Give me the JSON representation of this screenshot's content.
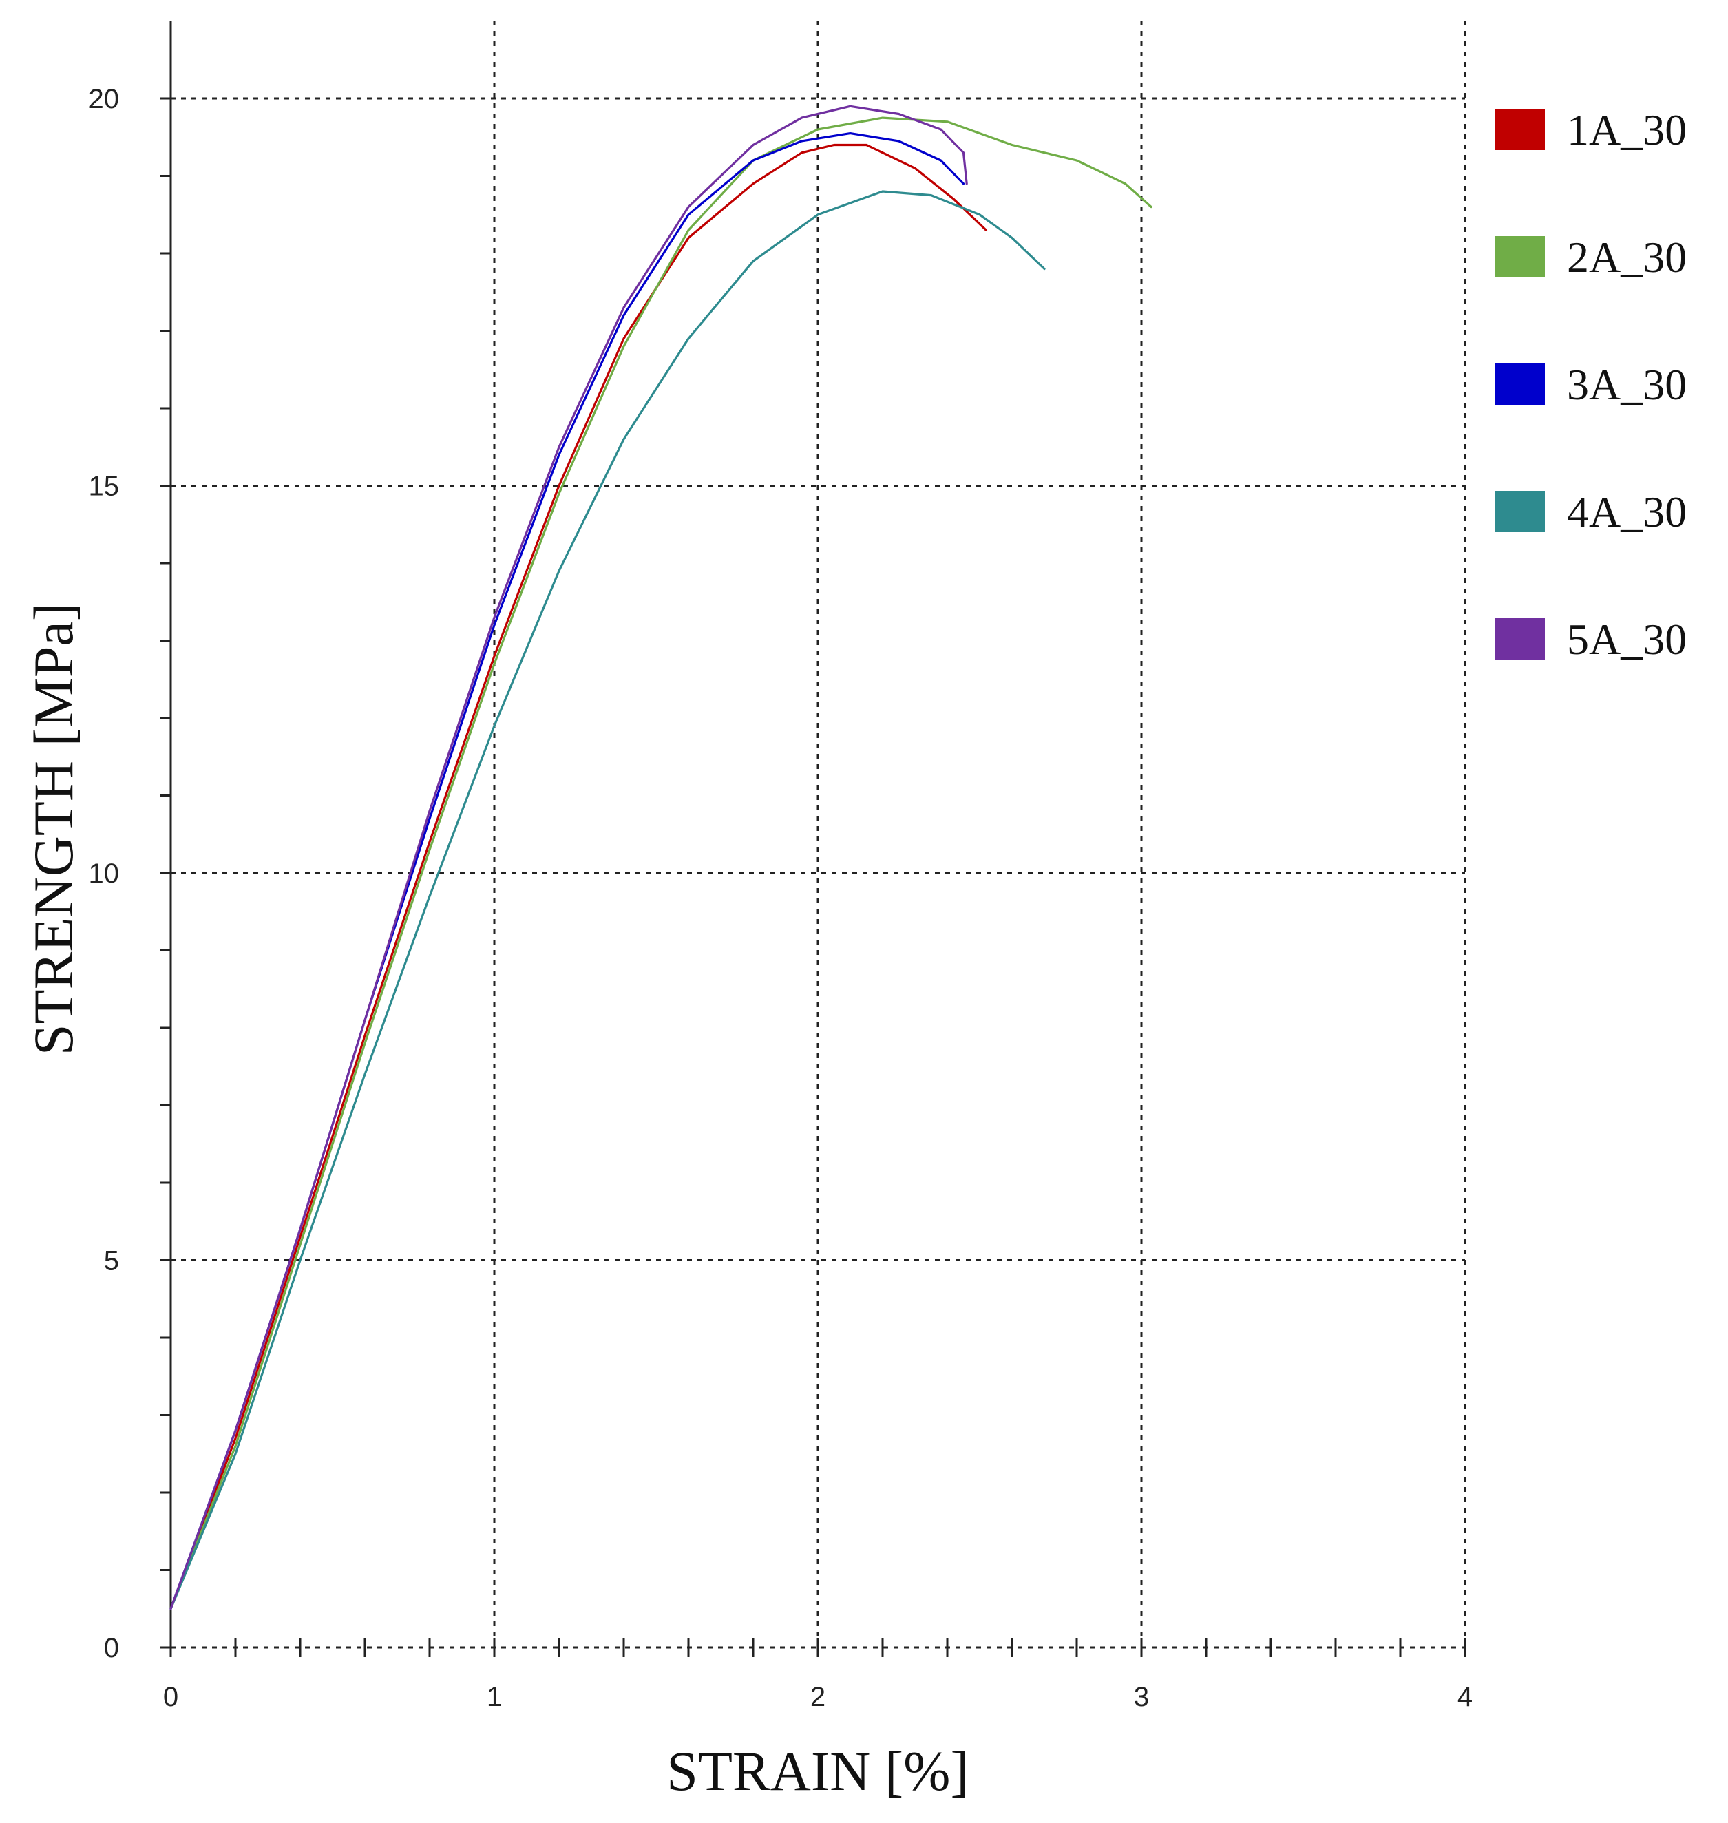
{
  "chart_data": {
    "type": "line",
    "title": "",
    "xlabel": "STRAIN [%]",
    "ylabel": "STRENGTH [MPa]",
    "xlim": [
      0,
      4
    ],
    "ylim": [
      0,
      20
    ],
    "xticks": [
      "0",
      "1",
      "2",
      "3",
      "4"
    ],
    "yticks": [
      "0",
      "5",
      "10",
      "15",
      "20"
    ],
    "grid": true,
    "legend_position": "right",
    "series": [
      {
        "name": "1A_30",
        "color": "#c00000",
        "points": [
          [
            0,
            0.5
          ],
          [
            0.2,
            2.7
          ],
          [
            0.4,
            5.3
          ],
          [
            0.6,
            7.9
          ],
          [
            0.8,
            10.4
          ],
          [
            1.0,
            12.8
          ],
          [
            1.2,
            15.0
          ],
          [
            1.4,
            16.9
          ],
          [
            1.6,
            18.2
          ],
          [
            1.8,
            18.9
          ],
          [
            1.95,
            19.3
          ],
          [
            2.05,
            19.4
          ],
          [
            2.15,
            19.4
          ],
          [
            2.3,
            19.1
          ],
          [
            2.42,
            18.7
          ],
          [
            2.52,
            18.3
          ]
        ]
      },
      {
        "name": "2A_30",
        "color": "#70ad47",
        "points": [
          [
            0,
            0.5
          ],
          [
            0.2,
            2.6
          ],
          [
            0.4,
            5.2
          ],
          [
            0.6,
            7.8
          ],
          [
            0.8,
            10.3
          ],
          [
            1.0,
            12.7
          ],
          [
            1.2,
            14.9
          ],
          [
            1.4,
            16.8
          ],
          [
            1.6,
            18.3
          ],
          [
            1.8,
            19.2
          ],
          [
            2.0,
            19.6
          ],
          [
            2.2,
            19.75
          ],
          [
            2.4,
            19.7
          ],
          [
            2.6,
            19.4
          ],
          [
            2.8,
            19.2
          ],
          [
            2.95,
            18.9
          ],
          [
            3.03,
            18.6
          ]
        ]
      },
      {
        "name": "3A_30",
        "color": "#0000cc",
        "points": [
          [
            0,
            0.5
          ],
          [
            0.2,
            2.8
          ],
          [
            0.4,
            5.4
          ],
          [
            0.6,
            8.1
          ],
          [
            0.8,
            10.7
          ],
          [
            1.0,
            13.2
          ],
          [
            1.2,
            15.4
          ],
          [
            1.4,
            17.2
          ],
          [
            1.6,
            18.5
          ],
          [
            1.8,
            19.2
          ],
          [
            1.95,
            19.45
          ],
          [
            2.1,
            19.55
          ],
          [
            2.25,
            19.45
          ],
          [
            2.38,
            19.2
          ],
          [
            2.45,
            18.9
          ]
        ]
      },
      {
        "name": "4A_30",
        "color": "#2e8b8f",
        "points": [
          [
            0,
            0.5
          ],
          [
            0.2,
            2.5
          ],
          [
            0.4,
            5.0
          ],
          [
            0.6,
            7.4
          ],
          [
            0.8,
            9.7
          ],
          [
            1.0,
            11.9
          ],
          [
            1.2,
            13.9
          ],
          [
            1.4,
            15.6
          ],
          [
            1.6,
            16.9
          ],
          [
            1.8,
            17.9
          ],
          [
            2.0,
            18.5
          ],
          [
            2.2,
            18.8
          ],
          [
            2.35,
            18.75
          ],
          [
            2.5,
            18.5
          ],
          [
            2.6,
            18.2
          ],
          [
            2.7,
            17.8
          ]
        ]
      },
      {
        "name": "5A_30",
        "color": "#7030a0",
        "points": [
          [
            0,
            0.5
          ],
          [
            0.2,
            2.8
          ],
          [
            0.4,
            5.4
          ],
          [
            0.6,
            8.1
          ],
          [
            0.8,
            10.8
          ],
          [
            1.0,
            13.3
          ],
          [
            1.2,
            15.5
          ],
          [
            1.4,
            17.3
          ],
          [
            1.6,
            18.6
          ],
          [
            1.8,
            19.4
          ],
          [
            1.95,
            19.75
          ],
          [
            2.1,
            19.9
          ],
          [
            2.25,
            19.8
          ],
          [
            2.38,
            19.6
          ],
          [
            2.45,
            19.3
          ],
          [
            2.46,
            18.9
          ]
        ]
      }
    ]
  }
}
